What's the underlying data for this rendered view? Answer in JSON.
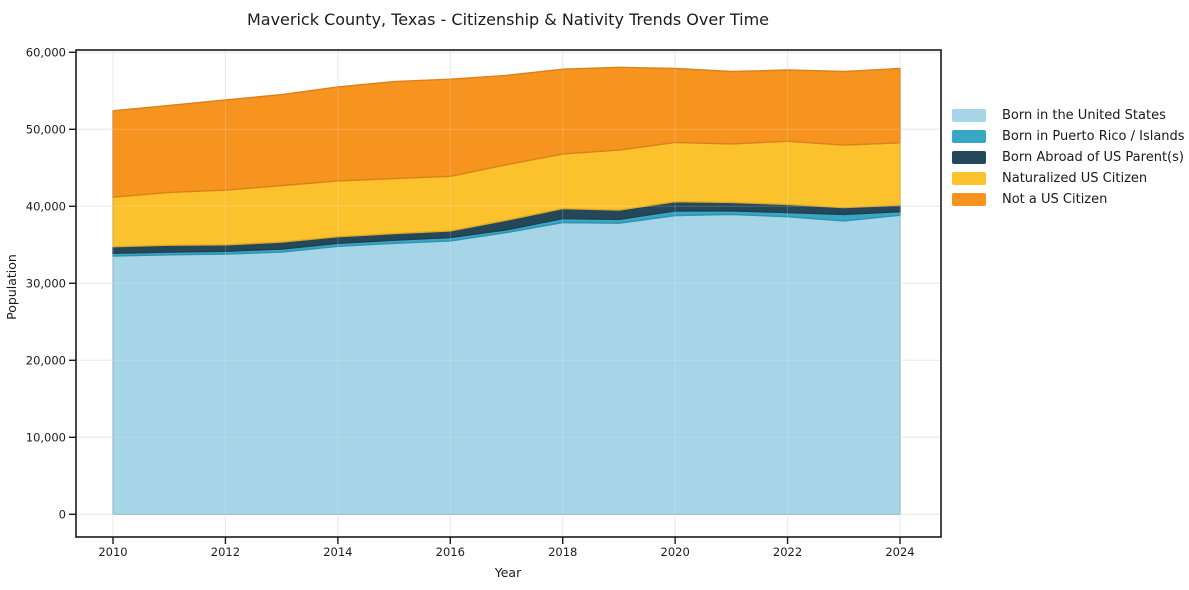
{
  "chart_data": {
    "type": "area",
    "stacked": true,
    "title": "Maverick County, Texas - Citizenship & Nativity Trends Over Time",
    "xlabel": "Year",
    "ylabel": "Population",
    "x": [
      2010,
      2011,
      2012,
      2013,
      2014,
      2015,
      2016,
      2017,
      2018,
      2019,
      2020,
      2021,
      2022,
      2023,
      2024
    ],
    "series": [
      {
        "name": "Born in the United States",
        "color": "#a5d5e6",
        "values": [
          33550,
          33700,
          33800,
          34050,
          34800,
          35200,
          35500,
          36600,
          37900,
          37800,
          38800,
          38950,
          38650,
          38100,
          38850
        ]
      },
      {
        "name": "Born in Puerto Rico / Islands",
        "color": "#38a7c5",
        "values": [
          350,
          350,
          350,
          400,
          400,
          400,
          450,
          350,
          500,
          500,
          600,
          450,
          550,
          850,
          450
        ]
      },
      {
        "name": "Born Abroad of US Parent(s)",
        "color": "#24485a",
        "values": [
          850,
          900,
          850,
          900,
          850,
          850,
          850,
          1250,
          1300,
          1200,
          1200,
          1100,
          1050,
          900,
          850
        ]
      },
      {
        "name": "Naturalized US Citizen",
        "color": "#fcc22d",
        "values": [
          6450,
          6850,
          7100,
          7350,
          7250,
          7150,
          7100,
          7200,
          7100,
          7800,
          7700,
          7600,
          8200,
          8100,
          8100
        ]
      },
      {
        "name": "Not a US Citizen",
        "color": "#f7941f",
        "values": [
          11200,
          11300,
          11700,
          11800,
          12200,
          12600,
          12600,
          11600,
          11000,
          10750,
          9600,
          9400,
          9250,
          9550,
          9650
        ]
      }
    ],
    "xticks": [
      2010,
      2012,
      2014,
      2016,
      2018,
      2020,
      2022,
      2024
    ],
    "yticks": [
      0,
      10000,
      20000,
      30000,
      40000,
      50000,
      60000
    ],
    "ylim": [
      0,
      60000
    ],
    "xlim": [
      2010,
      2024
    ],
    "grid": true,
    "legend_position": "right",
    "grid_color": "#e4e4e4",
    "spine_color": "#1a1a1a",
    "background_color": "#ffffff"
  }
}
